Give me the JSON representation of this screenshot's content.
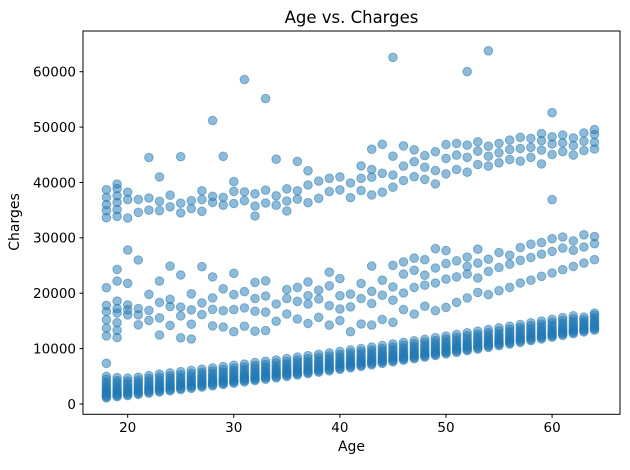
{
  "chart_data": {
    "type": "scatter",
    "title": "Age vs. Charges",
    "xlabel": "Age",
    "ylabel": "Charges",
    "xlim": [
      15.79,
      66.4
    ],
    "ylim": [
      -1860,
      67350
    ],
    "x_ticks": [
      20,
      30,
      40,
      50,
      60
    ],
    "y_ticks": [
      0,
      10000,
      20000,
      30000,
      40000,
      50000,
      60000
    ],
    "grid": false,
    "legend": null,
    "marker": {
      "color": "#1f77b4",
      "alpha": 0.5,
      "radius_px": 4.3
    },
    "series_name": "charges-vs-age",
    "points_by_age": {
      "18": [
        1122,
        1320,
        1560,
        1815,
        2100,
        2400,
        2720,
        3080,
        3480,
        3920,
        4450,
        4990,
        7350,
        12300,
        13700,
        15200,
        16700,
        17800,
        21000,
        33640,
        34900,
        36000,
        37300,
        38700
      ],
      "19": [
        1310,
        1530,
        1770,
        2030,
        2310,
        2620,
        2960,
        3340,
        3770,
        4250,
        4780,
        12000,
        13300,
        14700,
        16450,
        17250,
        18600,
        22200,
        24300,
        33900,
        35100,
        36400,
        37600,
        38900,
        39720
      ],
      "20": [
        1520,
        1730,
        1970,
        2240,
        2540,
        2870,
        3240,
        3660,
        4140,
        4680,
        16100,
        17000,
        17900,
        21800,
        27810,
        33580,
        36900,
        38250
      ],
      "21": [
        1730,
        1940,
        2180,
        2450,
        2750,
        3080,
        3450,
        3860,
        4320,
        4830,
        14300,
        16100,
        17250,
        26000,
        34600,
        36950
      ],
      "22": [
        1950,
        2160,
        2400,
        2670,
        2970,
        3310,
        3690,
        4120,
        4600,
        5140,
        15100,
        16900,
        19800,
        35000,
        37200,
        44501
      ],
      "23": [
        2160,
        2380,
        2630,
        2910,
        3220,
        3560,
        3940,
        4370,
        4850,
        5390,
        12450,
        15550,
        18350,
        22200,
        34900,
        36600,
        41000
      ],
      "24": [
        2380,
        2600,
        2850,
        3130,
        3440,
        3780,
        4160,
        4590,
        5070,
        5610,
        14200,
        17600,
        18900,
        24900,
        35600,
        37700
      ],
      "25": [
        2600,
        2820,
        3070,
        3350,
        3660,
        4000,
        4380,
        4810,
        5290,
        5830,
        11950,
        15900,
        17500,
        23300,
        34500,
        36250,
        44650
      ],
      "26": [
        2830,
        3050,
        3300,
        3580,
        3890,
        4230,
        4610,
        5040,
        5520,
        6060,
        11740,
        14400,
        17000,
        19900,
        35300,
        36700
      ],
      "27": [
        3060,
        3280,
        3530,
        3810,
        4120,
        4460,
        4840,
        5270,
        5750,
        6290,
        16150,
        18250,
        24800,
        34800,
        36900,
        38500
      ],
      "28": [
        3290,
        3510,
        3760,
        4040,
        4350,
        4690,
        5070,
        5500,
        5980,
        6520,
        14100,
        17100,
        19150,
        22950,
        36400,
        37500,
        51195
      ],
      "29": [
        3520,
        3740,
        3990,
        4270,
        4580,
        4920,
        5300,
        5730,
        6210,
        6750,
        13900,
        16850,
        20800,
        35900,
        37300,
        44725
      ],
      "30": [
        3760,
        3980,
        4230,
        4510,
        4820,
        5160,
        5540,
        5970,
        6450,
        6990,
        13050,
        17050,
        19750,
        23600,
        36200,
        38400,
        40150
      ],
      "31": [
        4000,
        4220,
        4470,
        4750,
        5060,
        5400,
        5780,
        6210,
        6690,
        7230,
        14050,
        17350,
        20300,
        36700,
        38300,
        58571
      ],
      "32": [
        4240,
        4460,
        4710,
        4990,
        5300,
        5640,
        6020,
        6450,
        6930,
        7470,
        13150,
        16750,
        19050,
        21950,
        33950,
        35750,
        37950
      ],
      "33": [
        4480,
        4700,
        4950,
        5230,
        5540,
        5880,
        6260,
        6690,
        7170,
        7710,
        13260,
        16600,
        19500,
        22250,
        36300,
        38600,
        55135
      ],
      "34": [
        4730,
        4950,
        5200,
        5480,
        5790,
        6130,
        6510,
        6940,
        7420,
        7960,
        14950,
        18050,
        35900,
        37600,
        44200
      ],
      "35": [
        4980,
        5200,
        5450,
        5730,
        6040,
        6380,
        6760,
        7190,
        7670,
        8210,
        16250,
        19050,
        20650,
        34850,
        36650,
        38850
      ],
      "36": [
        5230,
        5450,
        5700,
        5980,
        6290,
        6630,
        7010,
        7440,
        7920,
        8460,
        15350,
        18550,
        21050,
        37000,
        38500,
        43800
      ],
      "37": [
        5490,
        5710,
        5960,
        6240,
        6550,
        6890,
        7270,
        7700,
        8180,
        8720,
        14550,
        18050,
        19550,
        22050,
        36350,
        39550,
        42100
      ],
      "38": [
        5740,
        5960,
        6210,
        6490,
        6800,
        7140,
        7520,
        7950,
        8430,
        8970,
        15650,
        18950,
        20550,
        37150,
        40250
      ],
      "39": [
        6000,
        6220,
        6470,
        6750,
        7060,
        7400,
        7780,
        8210,
        8690,
        9230,
        14250,
        17750,
        21350,
        23800,
        38350,
        40750
      ],
      "40": [
        6270,
        6490,
        6740,
        7020,
        7330,
        7670,
        8050,
        8480,
        8960,
        9500,
        15050,
        17150,
        19550,
        22650,
        38650,
        41000
      ],
      "41": [
        6530,
        6750,
        7000,
        7280,
        7590,
        7930,
        8310,
        8740,
        9220,
        9760,
        13050,
        17550,
        19850,
        37250,
        39900
      ],
      "42": [
        6800,
        7020,
        7270,
        7550,
        7860,
        8200,
        8580,
        9010,
        9490,
        10030,
        14450,
        19050,
        21750,
        38550,
        40750,
        43000
      ],
      "43": [
        7070,
        7290,
        7540,
        7820,
        8130,
        8470,
        8850,
        9280,
        9760,
        10300,
        14250,
        18150,
        20350,
        24900,
        37750,
        40950,
        42350,
        46000
      ],
      "44": [
        7340,
        7560,
        7810,
        8090,
        8400,
        8740,
        9120,
        9550,
        10030,
        10570,
        15250,
        19650,
        22350,
        38250,
        41650,
        46900
      ],
      "45": [
        7620,
        7840,
        8090,
        8370,
        8680,
        9020,
        9400,
        9830,
        10310,
        10850,
        14750,
        18750,
        21150,
        25050,
        39150,
        41350,
        44750,
        62593
      ],
      "46": [
        7900,
        8120,
        8370,
        8650,
        8960,
        9300,
        9680,
        10110,
        10590,
        11130,
        17050,
        20050,
        23450,
        25650,
        40350,
        42950,
        46600
      ],
      "47": [
        8180,
        8400,
        8650,
        8930,
        9240,
        9580,
        9960,
        10390,
        10870,
        11410,
        16250,
        21050,
        24150,
        26350,
        41050,
        43750,
        45900
      ],
      "48": [
        8460,
        8680,
        8930,
        9210,
        9520,
        9860,
        10240,
        10670,
        11150,
        11690,
        17650,
        21450,
        23250,
        26050,
        40550,
        42750,
        44850
      ],
      "49": [
        8750,
        8970,
        9220,
        9500,
        9810,
        10150,
        10530,
        10960,
        11440,
        11980,
        16850,
        21850,
        24550,
        28050,
        39750,
        42150,
        45550
      ],
      "50": [
        9040,
        9260,
        9510,
        9790,
        10100,
        10440,
        10820,
        11250,
        11730,
        12270,
        17450,
        22550,
        25350,
        27700,
        41550,
        44350,
        46850
      ],
      "51": [
        9330,
        9550,
        9800,
        10080,
        10390,
        10730,
        11110,
        11540,
        12020,
        12560,
        18350,
        22950,
        25850,
        42350,
        44950,
        47050
      ],
      "52": [
        9620,
        9840,
        10090,
        10370,
        10680,
        11020,
        11400,
        11830,
        12310,
        12850,
        19150,
        23450,
        24850,
        26550,
        41850,
        44550,
        46750,
        60021
      ],
      "53": [
        9920,
        10140,
        10390,
        10670,
        10980,
        11320,
        11700,
        12130,
        12610,
        13150,
        20150,
        22750,
        25450,
        27950,
        43250,
        45650,
        47350
      ],
      "54": [
        10220,
        10440,
        10690,
        10970,
        11280,
        11620,
        12000,
        12430,
        12910,
        13450,
        19750,
        23950,
        26150,
        42950,
        44750,
        46550,
        63770
      ],
      "55": [
        10520,
        10740,
        10990,
        11270,
        11580,
        11920,
        12300,
        12730,
        13210,
        13750,
        20450,
        24650,
        27350,
        43550,
        45350,
        47050
      ],
      "56": [
        10820,
        11040,
        11290,
        11570,
        11880,
        12220,
        12600,
        13030,
        13510,
        14050,
        21050,
        25250,
        26850,
        44150,
        45950,
        47650
      ],
      "57": [
        11130,
        11350,
        11600,
        11880,
        12190,
        12530,
        12910,
        13340,
        13820,
        14360,
        21850,
        25950,
        28250,
        43850,
        46150,
        48150
      ],
      "58": [
        11440,
        11660,
        11910,
        12190,
        12500,
        12840,
        13220,
        13650,
        14130,
        14670,
        22350,
        26450,
        28850,
        44550,
        46350,
        47950
      ],
      "59": [
        11750,
        11970,
        12220,
        12500,
        12810,
        13150,
        13530,
        13960,
        14440,
        14980,
        23050,
        27050,
        29150,
        43350,
        45850,
        47550,
        48850
      ],
      "60": [
        12060,
        12280,
        12530,
        12810,
        13120,
        13460,
        13840,
        14270,
        14750,
        15290,
        23650,
        27550,
        29850,
        36900,
        45050,
        46950,
        48250,
        52590
      ],
      "61": [
        12380,
        12600,
        12850,
        13130,
        13440,
        13780,
        14160,
        14590,
        15070,
        15610,
        24250,
        28150,
        30150,
        45550,
        47150,
        48550
      ],
      "62": [
        12700,
        12920,
        13170,
        13450,
        13760,
        14100,
        14480,
        14910,
        15390,
        15930,
        24850,
        27750,
        29450,
        44950,
        46650,
        48050
      ],
      "63": [
        13020,
        13240,
        13490,
        13770,
        14080,
        14420,
        14800,
        15230,
        15710,
        25450,
        28350,
        30550,
        45750,
        47450,
        48950
      ],
      "64": [
        13350,
        13570,
        13820,
        14100,
        14410,
        14750,
        15130,
        15560,
        16040,
        16400,
        26050,
        28950,
        30250,
        46050,
        47250,
        48650,
        49550
      ]
    }
  }
}
